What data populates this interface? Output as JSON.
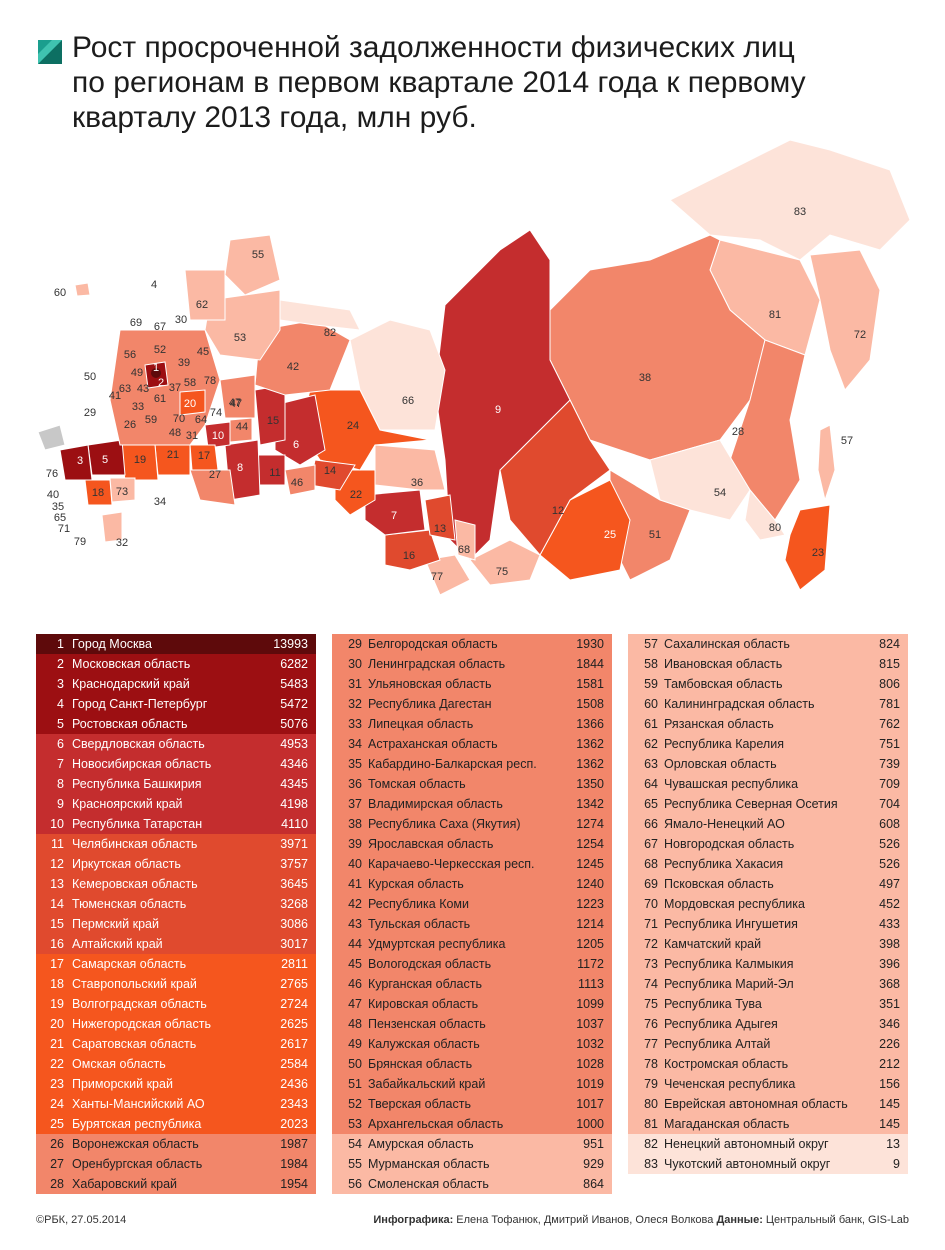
{
  "title_line1": "Рост просроченной задолженности физических лиц",
  "title_line2": "по регионам в первом квартале 2014 года к первому",
  "title_line3": "кварталу 2013 года, млн руб.",
  "footer": {
    "copyright": "©РБК, 27.05.2014",
    "infographics_label": "Инфографика:",
    "infographics": "Елена Тофанюк, Дмитрий Иванов, Олеся Волкова",
    "data_label": "Данные:",
    "data": "Центральный банк, GIS-Lab"
  },
  "colors": {
    "tier1": "#5e0a0b",
    "tier2": "#9c0f12",
    "tier3": "#c42d2e",
    "tier4": "#e04a2e",
    "tier5": "#f5561e",
    "tier6": "#f2866a",
    "tier7": "#fbb9a4",
    "tier8": "#fde3d9"
  },
  "regions": [
    {
      "n": "1",
      "name": "Город Москва",
      "v": "13993"
    },
    {
      "n": "2",
      "name": "Московская область",
      "v": "6282"
    },
    {
      "n": "3",
      "name": "Краснодарский край",
      "v": "5483"
    },
    {
      "n": "4",
      "name": "Город Санкт-Петербург",
      "v": "5472"
    },
    {
      "n": "5",
      "name": "Ростовская область",
      "v": "5076"
    },
    {
      "n": "6",
      "name": "Свердловская область",
      "v": "4953"
    },
    {
      "n": "7",
      "name": "Новосибирская область",
      "v": "4346"
    },
    {
      "n": "8",
      "name": "Республика Башкирия",
      "v": "4345"
    },
    {
      "n": "9",
      "name": "Красноярский край",
      "v": "4198"
    },
    {
      "n": "10",
      "name": "Республика Татарстан",
      "v": "4110"
    },
    {
      "n": "11",
      "name": "Челябинская область",
      "v": "3971"
    },
    {
      "n": "12",
      "name": "Иркутская область",
      "v": "3757"
    },
    {
      "n": "13",
      "name": "Кемеровская область",
      "v": "3645"
    },
    {
      "n": "14",
      "name": "Тюменская область",
      "v": "3268"
    },
    {
      "n": "15",
      "name": "Пермский край",
      "v": "3086"
    },
    {
      "n": "16",
      "name": "Алтайский край",
      "v": "3017"
    },
    {
      "n": "17",
      "name": "Самарская область",
      "v": "2811"
    },
    {
      "n": "18",
      "name": "Ставропольский край",
      "v": "2765"
    },
    {
      "n": "19",
      "name": "Волгоградская область",
      "v": "2724"
    },
    {
      "n": "20",
      "name": "Нижегородская область",
      "v": "2625"
    },
    {
      "n": "21",
      "name": "Саратовская область",
      "v": "2617"
    },
    {
      "n": "22",
      "name": "Омская область",
      "v": "2584"
    },
    {
      "n": "23",
      "name": "Приморский край",
      "v": "2436"
    },
    {
      "n": "24",
      "name": "Ханты-Мансийский АО",
      "v": "2343"
    },
    {
      "n": "25",
      "name": "Бурятская республика",
      "v": "2023"
    },
    {
      "n": "26",
      "name": "Воронежская область",
      "v": "1987"
    },
    {
      "n": "27",
      "name": "Оренбургская область",
      "v": "1984"
    },
    {
      "n": "28",
      "name": "Хабаровский край",
      "v": "1954"
    },
    {
      "n": "29",
      "name": "Белгородская область",
      "v": "1930"
    },
    {
      "n": "30",
      "name": "Ленинградская область",
      "v": "1844"
    },
    {
      "n": "31",
      "name": "Ульяновская область",
      "v": "1581"
    },
    {
      "n": "32",
      "name": "Республика Дагестан",
      "v": "1508"
    },
    {
      "n": "33",
      "name": "Липецкая область",
      "v": "1366"
    },
    {
      "n": "34",
      "name": "Астраханская область",
      "v": "1362"
    },
    {
      "n": "35",
      "name": "Кабардино-Балкарская респ.",
      "v": "1362"
    },
    {
      "n": "36",
      "name": "Томская область",
      "v": "1350"
    },
    {
      "n": "37",
      "name": "Владимирская область",
      "v": "1342"
    },
    {
      "n": "38",
      "name": "Республика Саха (Якутия)",
      "v": "1274"
    },
    {
      "n": "39",
      "name": "Ярославская область",
      "v": "1254"
    },
    {
      "n": "40",
      "name": "Карачаево-Черкесская респ.",
      "v": "1245"
    },
    {
      "n": "41",
      "name": "Курская область",
      "v": "1240"
    },
    {
      "n": "42",
      "name": "Республика Коми",
      "v": "1223"
    },
    {
      "n": "43",
      "name": "Тульская область",
      "v": "1214"
    },
    {
      "n": "44",
      "name": "Удмуртская республика",
      "v": "1205"
    },
    {
      "n": "45",
      "name": "Вологодская область",
      "v": "1172"
    },
    {
      "n": "46",
      "name": "Курганская область",
      "v": "1113"
    },
    {
      "n": "47",
      "name": "Кировская область",
      "v": "1099"
    },
    {
      "n": "48",
      "name": "Пензенская область",
      "v": "1037"
    },
    {
      "n": "49",
      "name": "Калужская область",
      "v": "1032"
    },
    {
      "n": "50",
      "name": "Брянская область",
      "v": "1028"
    },
    {
      "n": "51",
      "name": "Забайкальский край",
      "v": "1019"
    },
    {
      "n": "52",
      "name": "Тверская область",
      "v": "1017"
    },
    {
      "n": "53",
      "name": "Архангельская область",
      "v": "1000"
    },
    {
      "n": "54",
      "name": "Амурская область",
      "v": "951"
    },
    {
      "n": "55",
      "name": "Мурманская область",
      "v": "929"
    },
    {
      "n": "56",
      "name": "Смоленская область",
      "v": "864"
    },
    {
      "n": "57",
      "name": "Сахалинская область",
      "v": "824"
    },
    {
      "n": "58",
      "name": "Ивановская область",
      "v": "815"
    },
    {
      "n": "59",
      "name": "Тамбовская область",
      "v": "806"
    },
    {
      "n": "60",
      "name": "Калининградская область",
      "v": "781"
    },
    {
      "n": "61",
      "name": "Рязанская область",
      "v": "762"
    },
    {
      "n": "62",
      "name": "Республика Карелия",
      "v": "751"
    },
    {
      "n": "63",
      "name": "Орловская область",
      "v": "739"
    },
    {
      "n": "64",
      "name": "Чувашская республика",
      "v": "709"
    },
    {
      "n": "65",
      "name": "Республика Северная Осетия",
      "v": "704"
    },
    {
      "n": "66",
      "name": "Ямало-Ненецкий АО",
      "v": "608"
    },
    {
      "n": "67",
      "name": "Новгородская область",
      "v": "526"
    },
    {
      "n": "68",
      "name": "Республика Хакасия",
      "v": "526"
    },
    {
      "n": "69",
      "name": "Псковская область",
      "v": "497"
    },
    {
      "n": "70",
      "name": "Мордовская республика",
      "v": "452"
    },
    {
      "n": "71",
      "name": "Республика Ингушетия",
      "v": "433"
    },
    {
      "n": "72",
      "name": "Камчатский край",
      "v": "398"
    },
    {
      "n": "73",
      "name": "Республика Калмыкия",
      "v": "396"
    },
    {
      "n": "74",
      "name": "Республика Марий-Эл",
      "v": "368"
    },
    {
      "n": "75",
      "name": "Республика Тува",
      "v": "351"
    },
    {
      "n": "76",
      "name": "Республика Адыгея",
      "v": "346"
    },
    {
      "n": "77",
      "name": "Республика Алтай",
      "v": "226"
    },
    {
      "n": "78",
      "name": "Костромская область",
      "v": "212"
    },
    {
      "n": "79",
      "name": "Чеченская республика",
      "v": "156"
    },
    {
      "n": "80",
      "name": "Еврейская автономная область",
      "v": "145"
    },
    {
      "n": "81",
      "name": "Магаданская область",
      "v": "145"
    },
    {
      "n": "82",
      "name": "Ненецкий автономный округ",
      "v": "13"
    },
    {
      "n": "83",
      "name": "Чукотский автономный округ",
      "v": "9"
    }
  ]
}
